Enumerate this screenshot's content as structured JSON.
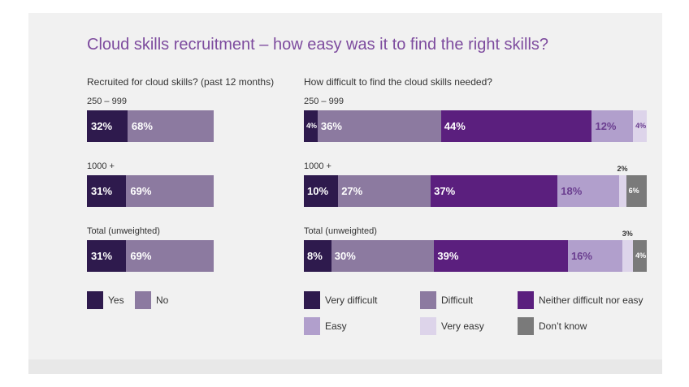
{
  "title": "Cloud skills recruitment – how easy was it to find the right skills?",
  "chart_data": [
    {
      "type": "bar",
      "orientation": "horizontal",
      "stacked": true,
      "title": "Recruited for cloud skills? (past 12 months)",
      "categories": [
        "250 – 999",
        "1000 +",
        "Total (unweighted)"
      ],
      "xlim": [
        0,
        100
      ],
      "legend_position": "bottom",
      "series": [
        {
          "name": "Yes",
          "color": "#2e1a4d",
          "values": [
            32,
            31,
            31
          ],
          "labels": [
            "32%",
            "31%",
            "31%"
          ]
        },
        {
          "name": "No",
          "color": "#8c7aa0",
          "values": [
            68,
            69,
            69
          ],
          "labels": [
            "68%",
            "69%",
            "69%"
          ]
        }
      ]
    },
    {
      "type": "bar",
      "orientation": "horizontal",
      "stacked": true,
      "title": "How difficult to find the cloud skills needed?",
      "categories": [
        "250 – 999",
        "1000 +",
        "Total (unweighted)"
      ],
      "xlim": [
        0,
        100
      ],
      "legend_position": "bottom",
      "series": [
        {
          "name": "Very difficult",
          "color": "#2e1a4d",
          "values": [
            4,
            10,
            8
          ],
          "labels": [
            "4%",
            "10%",
            "8%"
          ]
        },
        {
          "name": "Difficult",
          "color": "#8c7aa0",
          "values": [
            36,
            27,
            30
          ],
          "labels": [
            "36%",
            "27%",
            "30%"
          ]
        },
        {
          "name": "Neither difficult nor easy",
          "color": "#5b1f7e",
          "values": [
            44,
            37,
            39
          ],
          "labels": [
            "44%",
            "37%",
            "39%"
          ]
        },
        {
          "name": "Easy",
          "color": "#b19fcc",
          "values": [
            12,
            18,
            16
          ],
          "labels": [
            "12%",
            "18%",
            "16%"
          ]
        },
        {
          "name": "Very easy",
          "color": "#ddd4ea",
          "values": [
            4,
            2,
            3
          ],
          "labels": [
            "4%",
            "2%",
            "3%"
          ]
        },
        {
          "name": "Don’t  know",
          "color": "#7a7a7a",
          "values": [
            0,
            6,
            4
          ],
          "labels": [
            "",
            "6%",
            "4%"
          ]
        }
      ]
    }
  ]
}
